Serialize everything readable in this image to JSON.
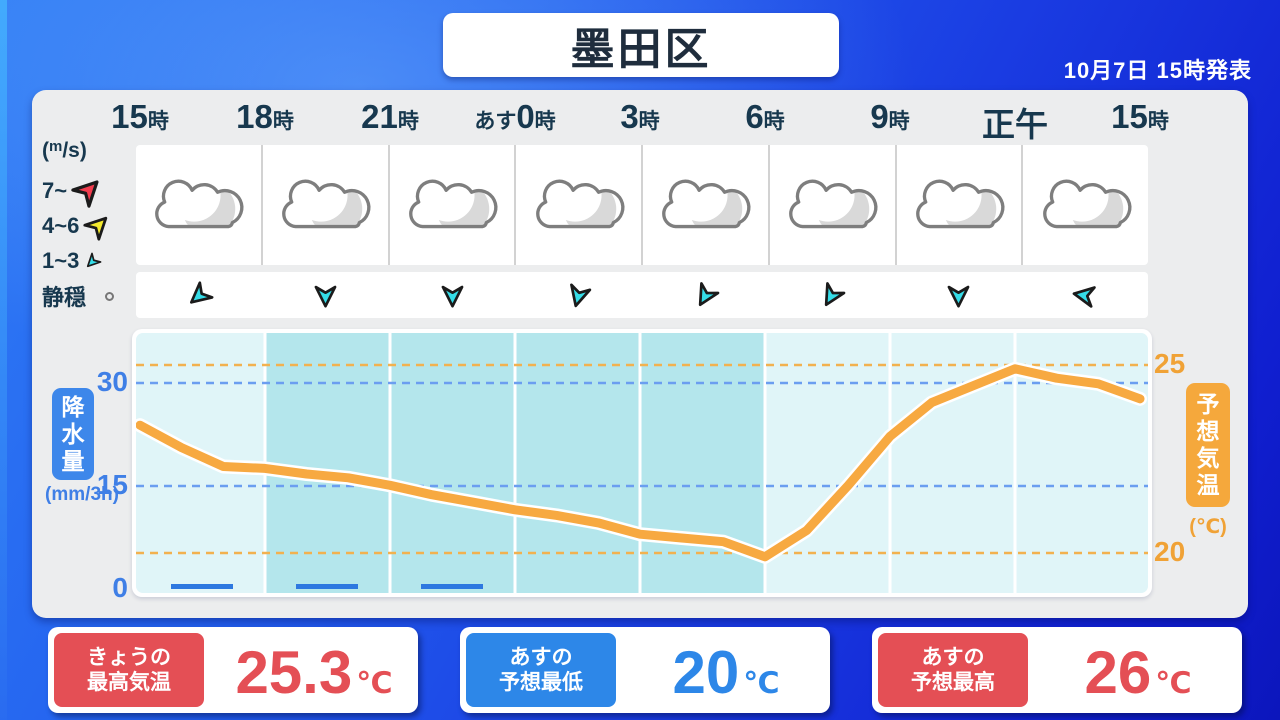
{
  "header": {
    "location_title": "墨田区",
    "issued_at": "10月7日 15時発表"
  },
  "time_axis": {
    "labels": [
      "15時",
      "18時",
      "21時",
      "あす0時",
      "3時",
      "6時",
      "9時",
      "正午",
      "15時"
    ]
  },
  "wind_legend": {
    "unit_label": "(m/s)",
    "rows": [
      {
        "label": "7~",
        "icon": "strong-wind-arrow-icon",
        "color": "#f23c4e",
        "rotation": -135,
        "size": 32
      },
      {
        "label": "4~6",
        "icon": "medium-wind-arrow-icon",
        "color": "#f4ea2e",
        "rotation": -135,
        "size": 28
      },
      {
        "label": "1~3",
        "icon": "light-wind-arrow-icon",
        "color": "#35dde8",
        "rotation": 45,
        "size": 17
      },
      {
        "label": "静穏",
        "icon": "calm-circle-icon",
        "color": "#ffffff",
        "rotation": 0,
        "size": 9
      }
    ]
  },
  "weather_row": {
    "icons": [
      "cloudy",
      "cloudy",
      "cloudy",
      "cloudy",
      "cloudy",
      "cloudy",
      "cloudy",
      "cloudy"
    ]
  },
  "wind_row": {
    "arrow_color": "#35dde8",
    "arrows": [
      {
        "dir_deg": 50
      },
      {
        "dir_deg": 0
      },
      {
        "dir_deg": 0
      },
      {
        "dir_deg": 15
      },
      {
        "dir_deg": 30
      },
      {
        "dir_deg": 30
      },
      {
        "dir_deg": 0
      },
      {
        "dir_deg": 100
      }
    ]
  },
  "chart_data": {
    "type": "line",
    "title": "",
    "x_tick_labels": [
      "15時",
      "18時",
      "21時",
      "あす0時",
      "3時",
      "6時",
      "9時",
      "正午",
      "15時"
    ],
    "night_band_hours": [
      3,
      15
    ],
    "background": {
      "day": "#e0f5f8",
      "night": "#b4e6ec",
      "divider": "#ffffff"
    },
    "series": [
      {
        "name": "予想気温",
        "unit": "℃",
        "color": "#f7a941",
        "hours_from_start": [
          0,
          1,
          2,
          3,
          4,
          5,
          6,
          7,
          8,
          9,
          10,
          11,
          12,
          13,
          14,
          15,
          16,
          17,
          18,
          19,
          20,
          21,
          22,
          23,
          24
        ],
        "values": [
          23.4,
          22.8,
          22.3,
          22.25,
          22.1,
          22.0,
          21.8,
          21.55,
          21.35,
          21.15,
          21.0,
          20.8,
          20.5,
          20.4,
          20.3,
          19.9,
          20.6,
          21.8,
          23.1,
          24.0,
          24.45,
          24.9,
          24.65,
          24.5,
          24.1
        ]
      }
    ],
    "bars": {
      "name": "降水量",
      "unit": "mm/3h",
      "color": "#2e78e0",
      "per_3h_values": [
        0.5,
        0.5,
        0.5,
        0,
        0,
        0,
        0,
        0
      ]
    },
    "left_axis": {
      "title": "降水量",
      "unit": "(mm/3h)",
      "ticks": [
        0,
        15,
        30
      ],
      "range": [
        0,
        37
      ],
      "color": "#3f7fe6",
      "dashed_color": "#6b9ef0"
    },
    "right_axis": {
      "title": "予想気温",
      "unit": "(℃)",
      "ticks": [
        20,
        25
      ],
      "range": [
        19,
        25.9
      ],
      "color": "#f0a236",
      "dashed_color": "#f2b14f"
    },
    "grid": {
      "temp_dashed_at": [
        25,
        20
      ],
      "precip_dashed_at": [
        30,
        15
      ]
    }
  },
  "summary_cards": [
    {
      "label_lines": [
        "きょうの",
        "最高気温"
      ],
      "accent": "#e44f55",
      "value": "25.3",
      "unit": "℃"
    },
    {
      "label_lines": [
        "あすの",
        "予想最低"
      ],
      "accent": "#2d87e8",
      "value": "20",
      "unit": "℃"
    },
    {
      "label_lines": [
        "あすの",
        "予想最高"
      ],
      "accent": "#e44f55",
      "value": "26",
      "unit": "℃"
    }
  ]
}
